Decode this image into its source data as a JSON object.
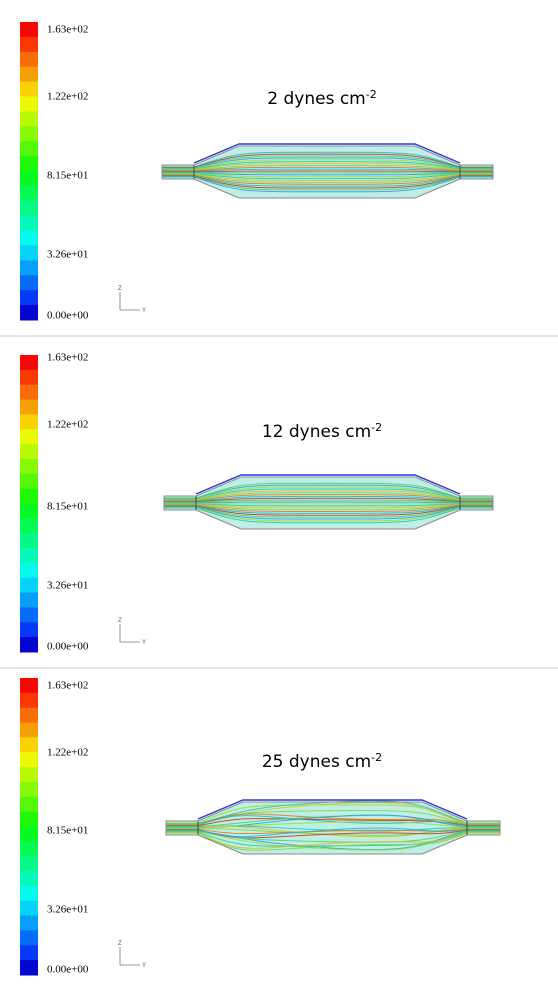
{
  "panels": [
    {
      "colorbar_labels": [
        "1.63e+02",
        "1.22e+02",
        "8.15e+01",
        "3.26e+01",
        "0.00e+00"
      ],
      "axis_labels": [
        "Z",
        "Y"
      ],
      "title": "2 dynes cm",
      "title_sup": "-2"
    },
    {
      "colorbar_labels": [
        "1.63e+02",
        "1.22e+02",
        "8.15e+01",
        "3.26e+01",
        "0.00e+00"
      ],
      "axis_labels": [
        "Z",
        "Y"
      ],
      "title": "12 dynes cm",
      "title_sup": "-2"
    },
    {
      "colorbar_labels": [
        "1.63e+02",
        "1.22e+02",
        "8.15e+01",
        "3.26e+01",
        "0.00e+00"
      ],
      "axis_labels": [
        "Z",
        "Y"
      ],
      "title": "25 dynes cm",
      "title_sup": "-2"
    }
  ]
}
